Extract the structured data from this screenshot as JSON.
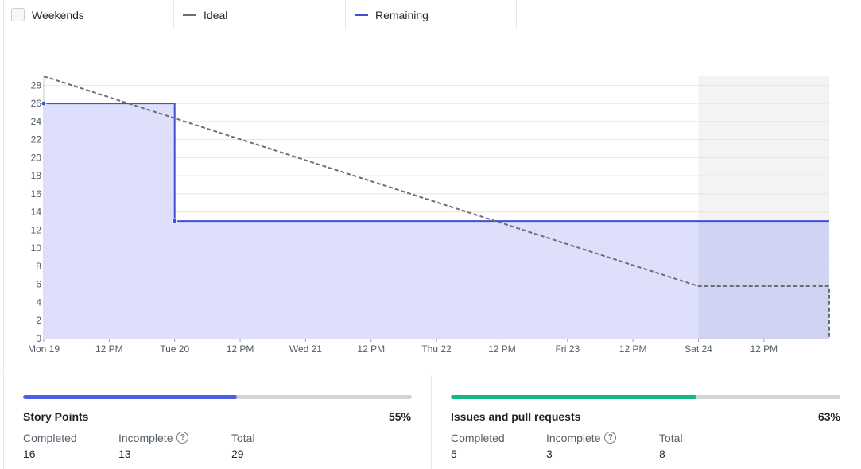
{
  "legend": {
    "weekends_label": "Weekends",
    "ideal_label": "Ideal",
    "remaining_label": "Remaining",
    "ideal_color": "#6b6e73",
    "remaining_color": "#3d52d5"
  },
  "chart_data": {
    "type": "area",
    "x_tick_labels": [
      "Mon 19",
      "12 PM",
      "Tue 20",
      "12 PM",
      "Wed 21",
      "12 PM",
      "Thu 22",
      "12 PM",
      "Fri 23",
      "12 PM",
      "Sat 24",
      "12 PM"
    ],
    "y_ticks": [
      0,
      2,
      4,
      6,
      8,
      10,
      12,
      14,
      16,
      18,
      20,
      22,
      24,
      26,
      28
    ],
    "ylim": [
      0,
      29
    ],
    "weekend_shaded": true,
    "grid": true,
    "series": [
      {
        "name": "Remaining",
        "style": "step",
        "color": "#3d52d5",
        "fill": "#dadcfa",
        "points": [
          {
            "x": "Mon 19",
            "y": 26
          },
          {
            "x": "Tue 20",
            "y": 26
          },
          {
            "x": "Tue 20",
            "y": 13
          },
          {
            "x": "Sun 25",
            "y": 13
          }
        ]
      },
      {
        "name": "Ideal",
        "style": "dashed",
        "color": "#6b6e73",
        "points": [
          {
            "x": "Mon 19",
            "y": 29
          },
          {
            "x": "Sat 24",
            "y": 5.8
          },
          {
            "x": "Sun 25",
            "y": 5.8
          },
          {
            "x": "Sun 25",
            "y": 0
          }
        ]
      }
    ]
  },
  "story_points": {
    "title": "Story Points",
    "percent": "55%",
    "progress": 0.55,
    "color": "#4c5ee8",
    "completed_label": "Completed",
    "completed": "16",
    "incomplete_label": "Incomplete",
    "incomplete": "13",
    "total_label": "Total",
    "total": "29"
  },
  "issues": {
    "title": "Issues and pull requests",
    "percent": "63%",
    "progress": 0.63,
    "color": "#12b886",
    "completed_label": "Completed",
    "completed": "5",
    "incomplete_label": "Incomplete",
    "incomplete": "3",
    "total_label": "Total",
    "total": "8"
  },
  "help_glyph": "?"
}
